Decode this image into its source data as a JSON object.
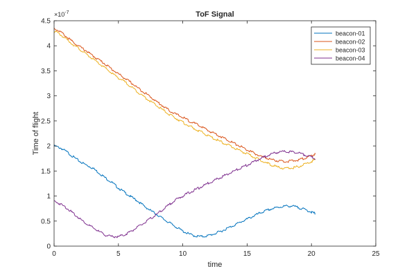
{
  "chart_data": {
    "type": "line",
    "title": "ToF Signal",
    "xlabel": "time",
    "ylabel": "Time of flight",
    "y_exponent_label": "×10",
    "y_exponent_power": "-7",
    "xlim": [
      0,
      25
    ],
    "ylim": [
      0,
      4.5
    ],
    "x_ticks": [
      "0",
      "5",
      "10",
      "15",
      "20",
      "25"
    ],
    "y_ticks": [
      "0",
      "0.5",
      "1",
      "1.5",
      "2",
      "2.5",
      "3",
      "3.5",
      "4",
      "4.5"
    ],
    "grid": false,
    "legend_position": "top-right",
    "series": [
      {
        "name": "beacon-01",
        "color": "#0072BD",
        "x": [
          0,
          0.5,
          1,
          1.5,
          2,
          2.5,
          3,
          3.5,
          4,
          4.5,
          5,
          5.5,
          6,
          6.5,
          7,
          7.5,
          8,
          8.5,
          9,
          9.5,
          10,
          10.5,
          11,
          11.5,
          12,
          12.5,
          13,
          13.5,
          14,
          14.5,
          15,
          15.5,
          16,
          16.5,
          17,
          17.5,
          18,
          18.5,
          19,
          19.5,
          20,
          20.3
        ],
        "y": [
          2.0,
          1.96,
          1.88,
          1.78,
          1.69,
          1.62,
          1.56,
          1.46,
          1.36,
          1.27,
          1.16,
          1.07,
          0.98,
          0.9,
          0.8,
          0.71,
          0.63,
          0.54,
          0.46,
          0.38,
          0.3,
          0.24,
          0.2,
          0.19,
          0.21,
          0.25,
          0.3,
          0.36,
          0.42,
          0.48,
          0.54,
          0.6,
          0.66,
          0.71,
          0.75,
          0.78,
          0.8,
          0.8,
          0.77,
          0.73,
          0.68,
          0.65
        ]
      },
      {
        "name": "beacon-02",
        "color": "#D95319",
        "x": [
          0,
          0.5,
          1,
          1.5,
          2,
          2.5,
          3,
          3.5,
          4,
          4.5,
          5,
          5.5,
          6,
          6.5,
          7,
          7.5,
          8,
          8.5,
          9,
          9.5,
          10,
          10.5,
          11,
          11.5,
          12,
          12.5,
          13,
          13.5,
          14,
          14.5,
          15,
          15.5,
          16,
          16.5,
          17,
          17.5,
          18,
          18.5,
          19,
          19.5,
          20,
          20.3
        ],
        "y": [
          4.35,
          4.28,
          4.17,
          4.07,
          3.98,
          3.9,
          3.8,
          3.72,
          3.63,
          3.53,
          3.44,
          3.35,
          3.26,
          3.16,
          3.07,
          2.98,
          2.88,
          2.79,
          2.7,
          2.63,
          2.57,
          2.5,
          2.44,
          2.38,
          2.3,
          2.25,
          2.18,
          2.12,
          2.05,
          1.99,
          1.92,
          1.86,
          1.8,
          1.76,
          1.72,
          1.7,
          1.69,
          1.7,
          1.72,
          1.76,
          1.8,
          1.84
        ]
      },
      {
        "name": "beacon-03",
        "color": "#EDB120",
        "x": [
          0,
          0.5,
          1,
          1.5,
          2,
          2.5,
          3,
          3.5,
          4,
          4.5,
          5,
          5.5,
          6,
          6.5,
          7,
          7.5,
          8,
          8.5,
          9,
          9.5,
          10,
          10.5,
          11,
          11.5,
          12,
          12.5,
          13,
          13.5,
          14,
          14.5,
          15,
          15.5,
          16,
          16.5,
          17,
          17.5,
          18,
          18.5,
          19,
          19.5,
          20,
          20.3
        ],
        "y": [
          4.3,
          4.22,
          4.12,
          4.02,
          3.93,
          3.83,
          3.74,
          3.64,
          3.55,
          3.45,
          3.36,
          3.28,
          3.18,
          3.08,
          2.98,
          2.89,
          2.8,
          2.71,
          2.62,
          2.55,
          2.47,
          2.4,
          2.33,
          2.27,
          2.2,
          2.14,
          2.08,
          2.02,
          1.96,
          1.9,
          1.84,
          1.78,
          1.72,
          1.66,
          1.61,
          1.57,
          1.55,
          1.56,
          1.59,
          1.64,
          1.69,
          1.73
        ]
      },
      {
        "name": "beacon-04",
        "color": "#7E2F8E",
        "x": [
          0,
          0.5,
          1,
          1.5,
          2,
          2.5,
          3,
          3.5,
          4,
          4.5,
          5,
          5.5,
          6,
          6.5,
          7,
          7.5,
          8,
          8.5,
          9,
          9.5,
          10,
          10.5,
          11,
          11.5,
          12,
          12.5,
          13,
          13.5,
          14,
          14.5,
          15,
          15.5,
          16,
          16.5,
          17,
          17.5,
          18,
          18.5,
          19,
          19.5,
          20,
          20.3
        ],
        "y": [
          0.9,
          0.84,
          0.76,
          0.65,
          0.55,
          0.45,
          0.37,
          0.29,
          0.22,
          0.19,
          0.19,
          0.23,
          0.3,
          0.38,
          0.46,
          0.55,
          0.64,
          0.74,
          0.84,
          0.93,
          1.0,
          1.07,
          1.13,
          1.19,
          1.26,
          1.32,
          1.38,
          1.44,
          1.5,
          1.56,
          1.62,
          1.68,
          1.74,
          1.8,
          1.85,
          1.88,
          1.89,
          1.88,
          1.86,
          1.82,
          1.78,
          1.74
        ]
      }
    ]
  }
}
